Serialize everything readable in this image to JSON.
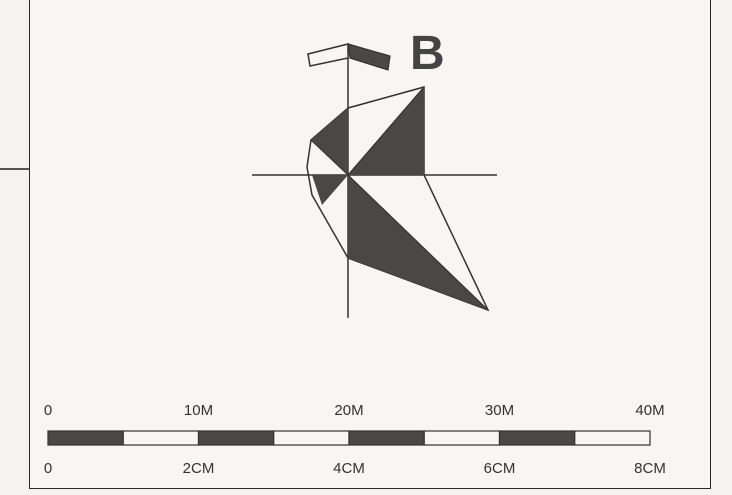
{
  "diagram": {
    "label": "B",
    "colors": {
      "fill": "#4a4744",
      "stroke": "#333333",
      "paper": "#f7f6f2"
    }
  },
  "scale_bar": {
    "top_labels": [
      "0",
      "10M",
      "20M",
      "30M",
      "40M"
    ],
    "bottom_labels": [
      "0",
      "2CM",
      "4CM",
      "6CM",
      "8CM"
    ],
    "segments": 8
  }
}
